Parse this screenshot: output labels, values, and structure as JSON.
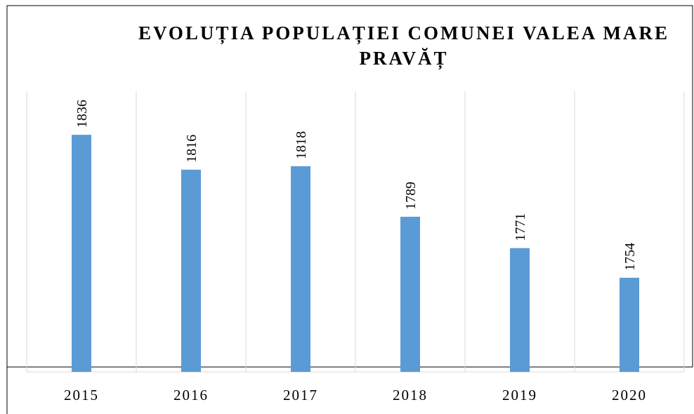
{
  "chart_data": {
    "type": "bar",
    "title": "EVOLUȚIA POPULAȚIEI COMUNEI VALEA MARE PRAVĂȚ",
    "categories": [
      "2015",
      "2016",
      "2017",
      "2018",
      "2019",
      "2020"
    ],
    "values": [
      1836,
      1816,
      1818,
      1789,
      1771,
      1754
    ],
    "color": "#5b9bd5",
    "ylim": [
      1700,
      1861
    ],
    "grid": true
  }
}
